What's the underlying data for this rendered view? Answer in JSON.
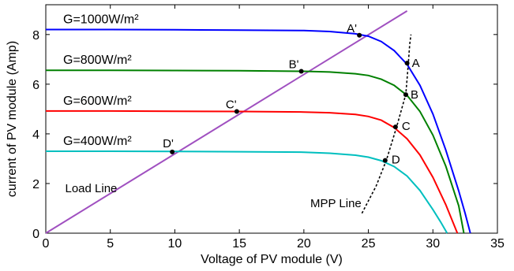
{
  "chart_data": {
    "type": "line",
    "xlabel": "Voltage of PV module (V)",
    "ylabel": "current of PV module (Amp)",
    "xlim": [
      0,
      35
    ],
    "ylim": [
      0,
      9.2
    ],
    "xticks": [
      0,
      5,
      10,
      15,
      20,
      25,
      30,
      35
    ],
    "yticks": [
      0,
      2,
      4,
      6,
      8
    ],
    "grid": false,
    "series": [
      {
        "name": "G=1000W/m²",
        "color": "#0000ff",
        "x": [
          0,
          5,
          10,
          15,
          20,
          22,
          24,
          25,
          26,
          27,
          28,
          29,
          30,
          31,
          32,
          32.5,
          32.9
        ],
        "y": [
          8.2,
          8.2,
          8.19,
          8.18,
          8.16,
          8.12,
          8.03,
          7.93,
          7.72,
          7.35,
          6.8,
          5.95,
          4.8,
          3.35,
          1.7,
          0.8,
          0
        ]
      },
      {
        "name": "G=800W/m²",
        "color": "#008000",
        "x": [
          0,
          5,
          10,
          15,
          20,
          22,
          24,
          25,
          26,
          27,
          28,
          29,
          30,
          31,
          32,
          32.4
        ],
        "y": [
          6.56,
          6.56,
          6.55,
          6.54,
          6.52,
          6.49,
          6.42,
          6.35,
          6.2,
          5.95,
          5.55,
          4.9,
          3.95,
          2.7,
          1.1,
          0
        ]
      },
      {
        "name": "G=600W/m²",
        "color": "#ff0000",
        "x": [
          0,
          5,
          10,
          15,
          20,
          22,
          24,
          25,
          26,
          27,
          28,
          29,
          30,
          31,
          31.9
        ],
        "y": [
          4.92,
          4.92,
          4.91,
          4.9,
          4.88,
          4.85,
          4.78,
          4.7,
          4.55,
          4.25,
          3.8,
          3.15,
          2.25,
          1.15,
          0
        ]
      },
      {
        "name": "G=400W/m²",
        "color": "#00bfbf",
        "x": [
          0,
          5,
          10,
          15,
          20,
          22,
          24,
          25,
          26,
          27,
          28,
          29,
          30,
          30.6,
          31.1
        ],
        "y": [
          3.3,
          3.3,
          3.29,
          3.28,
          3.26,
          3.22,
          3.14,
          3.06,
          2.92,
          2.68,
          2.3,
          1.72,
          0.95,
          0.45,
          0
        ]
      }
    ],
    "load_line": {
      "label": "Load Line",
      "color": "#a050c0",
      "x": [
        0,
        28
      ],
      "y": [
        0,
        8.95
      ]
    },
    "mpp_line": {
      "label": "MPP Line",
      "x": [
        24.5,
        25.6,
        26.4,
        27.2,
        27.9,
        28.1,
        28.2,
        28.3
      ],
      "y": [
        0.8,
        1.9,
        2.95,
        4.3,
        5.6,
        6.85,
        7.6,
        8.0
      ]
    },
    "points": [
      {
        "label": "A",
        "x": 28.0,
        "y": 6.85
      },
      {
        "label": "B",
        "x": 27.9,
        "y": 5.58
      },
      {
        "label": "C",
        "x": 27.1,
        "y": 4.28
      },
      {
        "label": "D",
        "x": 26.3,
        "y": 2.93
      },
      {
        "label": "A'",
        "x": 24.3,
        "y": 7.97
      },
      {
        "label": "B'",
        "x": 19.8,
        "y": 6.52
      },
      {
        "label": "C'",
        "x": 14.8,
        "y": 4.9
      },
      {
        "label": "D'",
        "x": 9.8,
        "y": 3.27
      }
    ]
  }
}
